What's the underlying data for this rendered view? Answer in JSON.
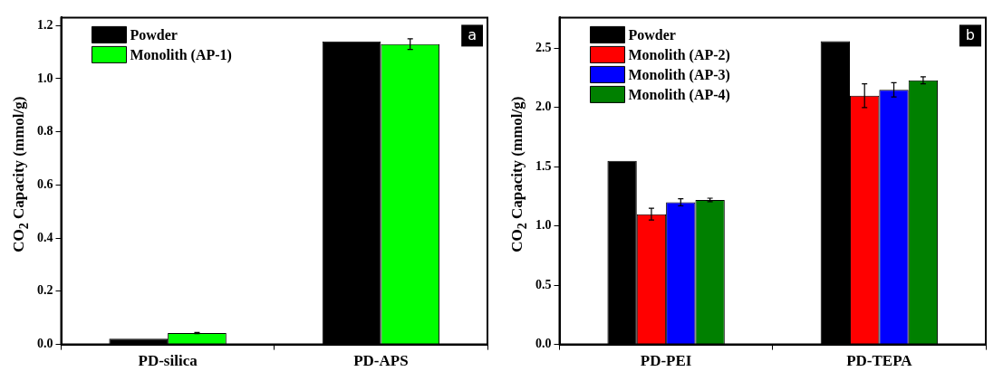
{
  "chart_data": [
    {
      "type": "bar",
      "ylabel": "CO$_{2}$ Capacity (mmol/g)",
      "categories": [
        "PD-silica",
        "PD-APS"
      ],
      "series": [
        {
          "name": "Powder",
          "color": "#000000",
          "values": [
            0.022,
            1.14
          ]
        },
        {
          "name": "Monolith (AP-1)",
          "color": "#00ff00",
          "values": [
            0.043,
            1.13
          ],
          "errors": [
            0.002,
            0.02
          ]
        }
      ],
      "ylim": [
        0,
        1.23
      ],
      "yticks": [
        {
          "value": 0,
          "label": "0.0"
        },
        0.2,
        0.4,
        0.6,
        0.8,
        {
          "value": 1,
          "label": "1.0"
        },
        1.2
      ],
      "grid": false,
      "legend": "top left",
      "annotations": [
        "a"
      ]
    },
    {
      "type": "bar",
      "ylabel": "CO$_{2}$ Capacity (mmol/g)",
      "categories": [
        "PD-PEI",
        "PD-TEPA"
      ],
      "series": [
        {
          "name": "Powder",
          "color": "#000000",
          "values": [
            1.55,
            2.56
          ]
        },
        {
          "name": "Monolith (AP-2)",
          "color": "#ff0000",
          "values": [
            1.1,
            2.1
          ],
          "errors": [
            0.05,
            0.1
          ]
        },
        {
          "name": "Monolith (AP-3)",
          "color": "#0000ff",
          "values": [
            1.2,
            2.15
          ],
          "errors": [
            0.03,
            0.06
          ]
        },
        {
          "name": "Monolith (AP-4)",
          "color": "#008000",
          "values": [
            1.22,
            2.23
          ],
          "errors": [
            0.015,
            0.03
          ]
        }
      ],
      "ylim": [
        0,
        2.76
      ],
      "yticks": [
        {
          "value": 0,
          "label": "0.0"
        },
        0.5,
        {
          "value": 1,
          "label": "1.0"
        },
        1.5,
        {
          "value": 2,
          "label": "2.0"
        },
        2.5
      ],
      "grid": false,
      "legend": "top left",
      "annotations": [
        "b"
      ]
    }
  ]
}
